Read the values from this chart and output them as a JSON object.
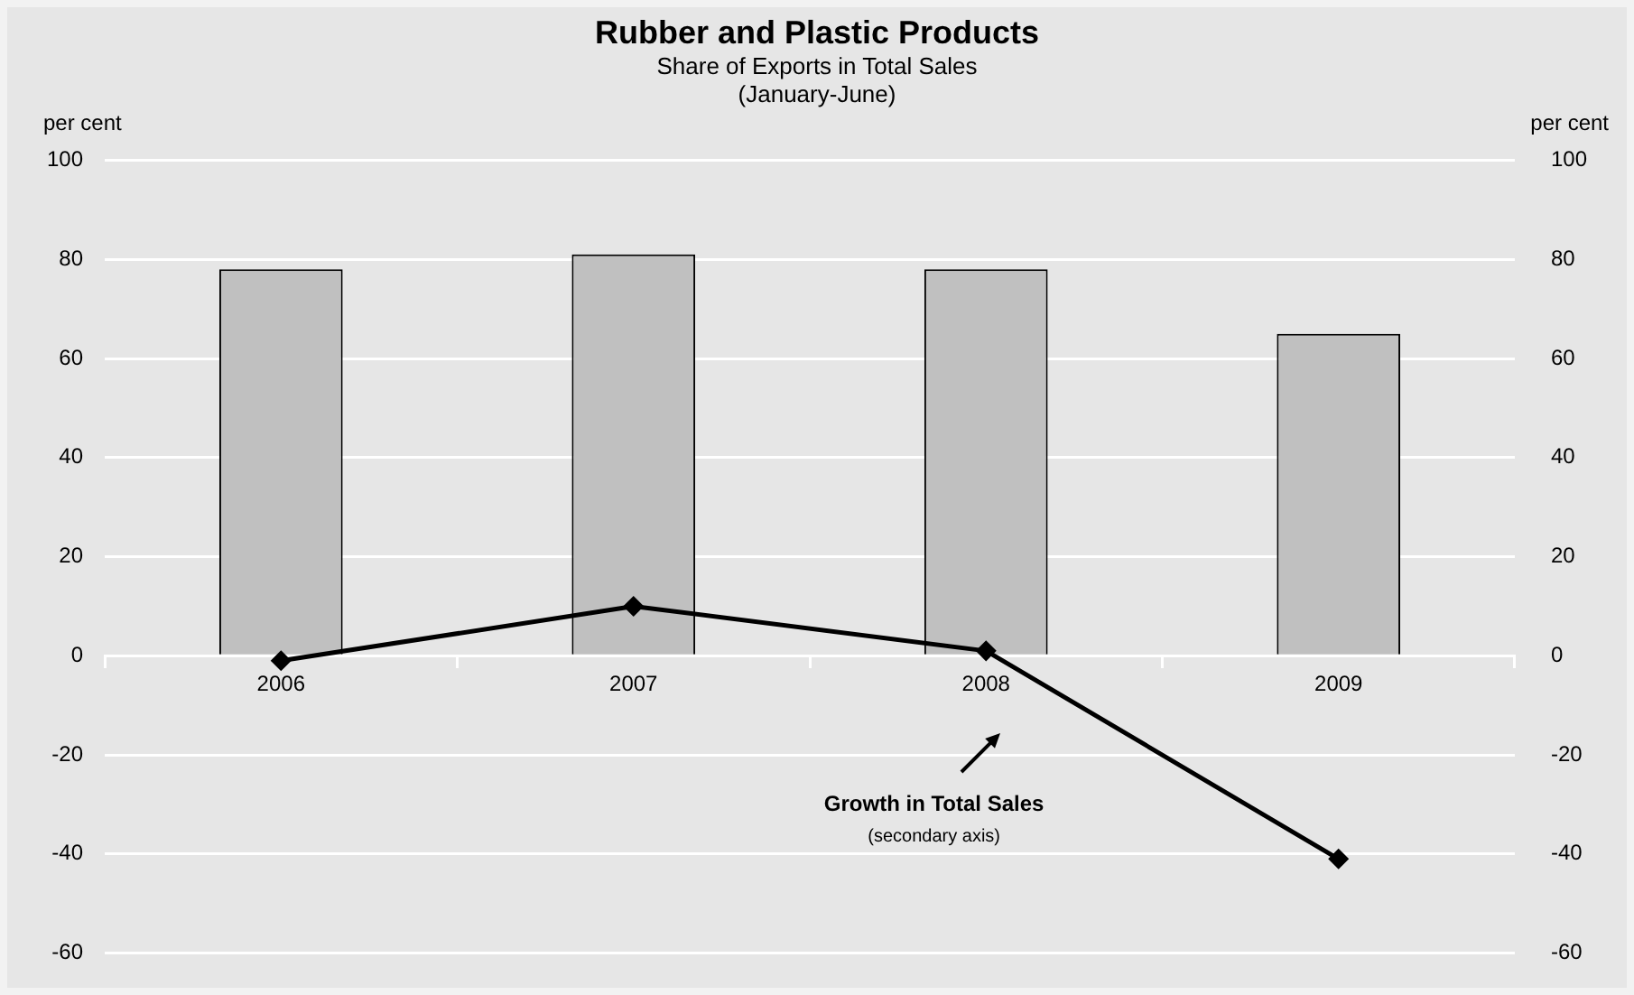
{
  "chart_data": {
    "type": "bar",
    "title": "Rubber and Plastic Products",
    "subtitle": "Share of Exports in Total Sales\n(January-June)",
    "ylabel": "per cent",
    "y2label": "per cent",
    "categories": [
      "2006",
      "2007",
      "2008",
      "2009"
    ],
    "series": [
      {
        "color": "#c0c0c0",
        "values": [
          78,
          81,
          78,
          65
        ]
      },
      {
        "type": "line",
        "axis": "y2",
        "color": "#000000",
        "values": [
          -1,
          10,
          1,
          -41
        ]
      }
    ],
    "ylim": [
      -60,
      100
    ],
    "yticks": [
      -60,
      -40,
      -20,
      0,
      20,
      40,
      60,
      80,
      100
    ],
    "y2lim": [
      -60,
      100
    ],
    "y2ticks": [
      -60,
      -40,
      -20,
      0,
      20,
      40,
      60,
      80,
      100
    ],
    "annotations": [
      "Growth in Total Sales",
      "(secondary axis)"
    ],
    "grid": "y",
    "legend": false,
    "marker": "diamond",
    "line_style": "solid"
  }
}
